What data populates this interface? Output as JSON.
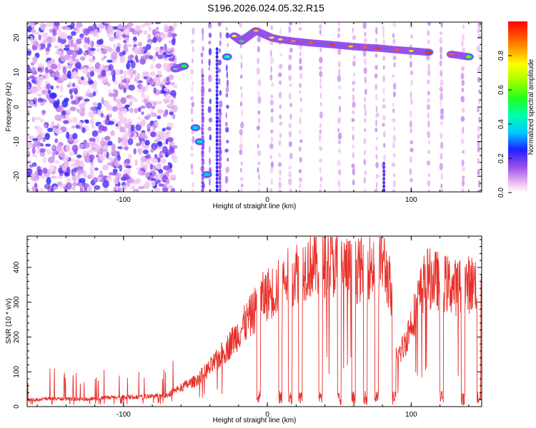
{
  "title": "S196.2026.024.05.32.R15",
  "chart_data": [
    {
      "type": "heatmap",
      "xlabel": "Height of straight line (km)",
      "ylabel": "Frequency (Hz)",
      "xlim": [
        -167,
        149
      ],
      "ylim": [
        -24.5,
        24.5
      ],
      "xticks": [
        -100,
        0,
        100
      ],
      "yticks": [
        -20,
        -10,
        0,
        10,
        20
      ],
      "colorbar": {
        "label": "Normalized spectral amplitude",
        "range": [
          0.0,
          1.0
        ],
        "ticks": [
          "0.0",
          "0.2",
          "0.4",
          "0.6",
          "0.8"
        ],
        "tick_values": [
          0.0,
          0.2,
          0.4,
          0.6,
          0.8
        ]
      },
      "main_trace": [
        {
          "x": -64,
          "f": 11.0,
          "a": 0.45
        },
        {
          "x": -58,
          "f": 11.8,
          "a": 0.55
        },
        {
          "x": -50,
          "f": -6.0,
          "a": 0.35
        },
        {
          "x": -47,
          "f": -10.0,
          "a": 0.4
        },
        {
          "x": -42,
          "f": -19.5,
          "a": 0.35
        },
        {
          "x": -28,
          "f": 14.5,
          "a": 0.45
        },
        {
          "x": -23,
          "f": 20.5,
          "a": 0.75
        },
        {
          "x": -18,
          "f": 19.0,
          "a": 0.55
        },
        {
          "x": -8,
          "f": 22.0,
          "a": 0.8
        },
        {
          "x": 3,
          "f": 20.0,
          "a": 0.75
        },
        {
          "x": 9,
          "f": 19.5,
          "a": 0.7
        },
        {
          "x": 18,
          "f": 19.0,
          "a": 0.85
        },
        {
          "x": 30,
          "f": 18.5,
          "a": 0.9
        },
        {
          "x": 45,
          "f": 18.0,
          "a": 0.95
        },
        {
          "x": 58,
          "f": 17.5,
          "a": 0.8
        },
        {
          "x": 68,
          "f": 17.2,
          "a": 0.9
        },
        {
          "x": 77,
          "f": 17.0,
          "a": 0.95
        },
        {
          "x": 90,
          "f": 16.5,
          "a": 0.9
        },
        {
          "x": 100,
          "f": 16.2,
          "a": 0.7
        },
        {
          "x": 112,
          "f": 15.8,
          "a": 0.95
        },
        {
          "x": 128,
          "f": 15.2,
          "a": 0.9
        },
        {
          "x": 140,
          "f": 14.5,
          "a": 0.6
        }
      ]
    },
    {
      "type": "line",
      "xlabel": "Height of straight line (km)",
      "ylabel": "SNR (10 * v/v)",
      "xlim": [
        -167,
        149
      ],
      "ylim": [
        0,
        490
      ],
      "xticks": [
        -100,
        0,
        100
      ],
      "yticks": [
        0,
        100,
        200,
        300,
        400
      ],
      "series": [
        {
          "name": "SNR",
          "color": "#e8302a",
          "x": [
            -167,
            -150,
            -130,
            -110,
            -90,
            -70,
            -60,
            -50,
            -40,
            -30,
            -20,
            -10,
            -5,
            0,
            5,
            10,
            20,
            30,
            40,
            50,
            60,
            70,
            80,
            85,
            90,
            95,
            100,
            110,
            120,
            130,
            140,
            149
          ],
          "values": [
            20,
            25,
            22,
            28,
            30,
            35,
            60,
            80,
            120,
            170,
            230,
            290,
            330,
            350,
            360,
            380,
            420,
            440,
            445,
            440,
            420,
            430,
            460,
            380,
            150,
            190,
            260,
            400,
            390,
            370,
            380,
            390
          ],
          "dropouts_x": [
            -6,
            9,
            16,
            23,
            37,
            50,
            60,
            68,
            76,
            88,
            121,
            136,
            147
          ]
        }
      ]
    }
  ]
}
